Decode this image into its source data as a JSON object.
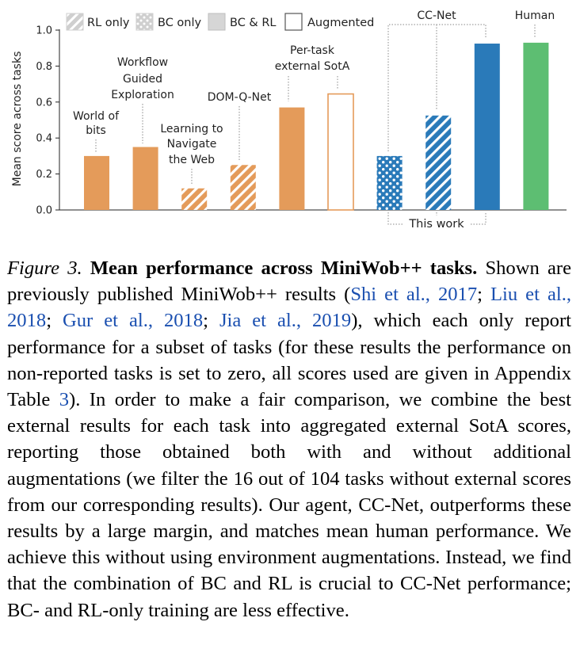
{
  "chart_data": {
    "type": "bar",
    "ylabel": "Mean score across tasks",
    "ylim": [
      0,
      1.0
    ],
    "yticks": [
      "0.0",
      "0.2",
      "0.4",
      "0.6",
      "0.8",
      "1.0"
    ],
    "ytick_values": [
      0,
      0.2,
      0.4,
      0.6,
      0.8,
      1.0
    ],
    "legend": [
      {
        "label": "RL only",
        "style": "hatch"
      },
      {
        "label": "BC only",
        "style": "dots"
      },
      {
        "label": "BC & RL",
        "style": "solid"
      },
      {
        "label": "Augmented",
        "style": "outline"
      }
    ],
    "legend_position": "top-left",
    "bars": [
      {
        "label": "World of bits",
        "value": 0.3,
        "color": "#e49b5a",
        "style": "solid"
      },
      {
        "label": "Workflow Guided Exploration",
        "value": 0.35,
        "color": "#e49b5a",
        "style": "solid"
      },
      {
        "label": "Learning to Navigate the Web",
        "value": 0.12,
        "color": "#e49b5a",
        "style": "hatch"
      },
      {
        "label": "DOM-Q-Net",
        "value": 0.25,
        "color": "#e49b5a",
        "style": "hatch"
      },
      {
        "label": "Per-task external SotA",
        "value": 0.57,
        "color": "#e49b5a",
        "style": "solid"
      },
      {
        "label": "",
        "value": 0.645,
        "color": "#e49b5a",
        "style": "outline"
      },
      {
        "label": "",
        "value": 0.3,
        "color": "#2a7ab9",
        "style": "dots"
      },
      {
        "label": "",
        "value": 0.525,
        "color": "#2a7ab9",
        "style": "hatch"
      },
      {
        "label": "CC-Net",
        "value": 0.925,
        "color": "#2a7ab9",
        "style": "solid"
      },
      {
        "label": "Human",
        "value": 0.93,
        "color": "#5dbe72",
        "style": "solid"
      }
    ],
    "annotations": {
      "per_task_label": [
        "Per-task",
        "external SotA"
      ],
      "cc_net_label": "CC-Net",
      "this_work_label": "This work",
      "human_label": "Human",
      "bar_labels": {
        "world_of_bits": [
          "World of",
          "bits"
        ],
        "workflow": [
          "Workflow",
          "Guided",
          "Exploration"
        ],
        "learning": [
          "Learning to",
          "Navigate",
          "the Web"
        ],
        "domq": [
          "DOM-Q-Net"
        ]
      }
    }
  },
  "caption": {
    "fig_label": "Figure 3.",
    "fig_title": "Mean performance across MiniWob++ tasks.",
    "t1": "Shown are previously published MiniWob++ results (",
    "c1": "Shi et al., 2017",
    "t2": "; ",
    "c2": "Liu et al., 2018",
    "t3": "; ",
    "c3": "Gur et al., 2018",
    "t4": "; ",
    "c4": "Jia et al., 2019",
    "t5": "), which each only report performance for a subset of tasks (for these results the performance on non-reported tasks is set to zero, all scores used are given in Appendix Table ",
    "c5": "3",
    "t6": ").  In order to make a fair comparison, we combine the best external results for each task into aggregated external SotA scores, reporting those obtained both with and without additional augmentations (we filter the 16 out of 104 tasks without external scores from our corresponding results). Our agent, CC-Net, outperforms these results by a large margin, and matches mean human performance. We achieve this without using environment augmentations. Instead, we find that the combination of BC and RL is crucial to CC-Net performance; BC- and RL-only training are less effective."
  }
}
